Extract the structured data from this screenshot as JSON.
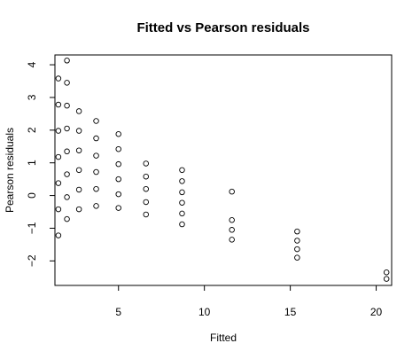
{
  "chart_data": {
    "type": "scatter",
    "title": "Fitted vs Pearson residuals",
    "xlabel": "Fitted",
    "ylabel": "Pearson residuals",
    "xlim": [
      1.3,
      20.9
    ],
    "ylim": [
      -2.75,
      4.3
    ],
    "xticks": [
      5,
      10,
      15,
      20
    ],
    "yticks": [
      -2,
      -1,
      0,
      1,
      2,
      3,
      4
    ],
    "grid": false,
    "points": [
      {
        "x": 1.5,
        "y": 3.58
      },
      {
        "x": 1.5,
        "y": 2.78
      },
      {
        "x": 1.5,
        "y": 1.98
      },
      {
        "x": 1.5,
        "y": 1.18
      },
      {
        "x": 1.5,
        "y": 0.38
      },
      {
        "x": 1.5,
        "y": -0.42
      },
      {
        "x": 1.5,
        "y": -1.22
      },
      {
        "x": 2.0,
        "y": 4.13
      },
      {
        "x": 2.0,
        "y": 3.45
      },
      {
        "x": 2.0,
        "y": 2.75
      },
      {
        "x": 2.0,
        "y": 2.05
      },
      {
        "x": 2.0,
        "y": 1.35
      },
      {
        "x": 2.0,
        "y": 0.65
      },
      {
        "x": 2.0,
        "y": -0.05
      },
      {
        "x": 2.0,
        "y": -0.72
      },
      {
        "x": 2.7,
        "y": 2.58
      },
      {
        "x": 2.7,
        "y": 1.98
      },
      {
        "x": 2.7,
        "y": 1.38
      },
      {
        "x": 2.7,
        "y": 0.78
      },
      {
        "x": 2.7,
        "y": 0.18
      },
      {
        "x": 2.7,
        "y": -0.42
      },
      {
        "x": 3.7,
        "y": 2.28
      },
      {
        "x": 3.7,
        "y": 1.75
      },
      {
        "x": 3.7,
        "y": 1.22
      },
      {
        "x": 3.7,
        "y": 0.72
      },
      {
        "x": 3.7,
        "y": 0.2
      },
      {
        "x": 3.7,
        "y": -0.32
      },
      {
        "x": 5.0,
        "y": 1.88
      },
      {
        "x": 5.0,
        "y": 1.42
      },
      {
        "x": 5.0,
        "y": 0.96
      },
      {
        "x": 5.0,
        "y": 0.5
      },
      {
        "x": 5.0,
        "y": 0.04
      },
      {
        "x": 5.0,
        "y": -0.38
      },
      {
        "x": 6.6,
        "y": 0.98
      },
      {
        "x": 6.6,
        "y": 0.58
      },
      {
        "x": 6.6,
        "y": 0.2
      },
      {
        "x": 6.6,
        "y": -0.2
      },
      {
        "x": 6.6,
        "y": -0.58
      },
      {
        "x": 8.7,
        "y": 0.78
      },
      {
        "x": 8.7,
        "y": 0.44
      },
      {
        "x": 8.7,
        "y": 0.1
      },
      {
        "x": 8.7,
        "y": -0.22
      },
      {
        "x": 8.7,
        "y": -0.55
      },
      {
        "x": 8.7,
        "y": -0.88
      },
      {
        "x": 11.6,
        "y": 0.12
      },
      {
        "x": 11.6,
        "y": -0.75
      },
      {
        "x": 11.6,
        "y": -1.05
      },
      {
        "x": 11.6,
        "y": -1.35
      },
      {
        "x": 15.4,
        "y": -1.1
      },
      {
        "x": 15.4,
        "y": -1.38
      },
      {
        "x": 15.4,
        "y": -1.64
      },
      {
        "x": 15.4,
        "y": -1.9
      },
      {
        "x": 20.6,
        "y": -2.35
      },
      {
        "x": 20.6,
        "y": -2.55
      }
    ]
  }
}
